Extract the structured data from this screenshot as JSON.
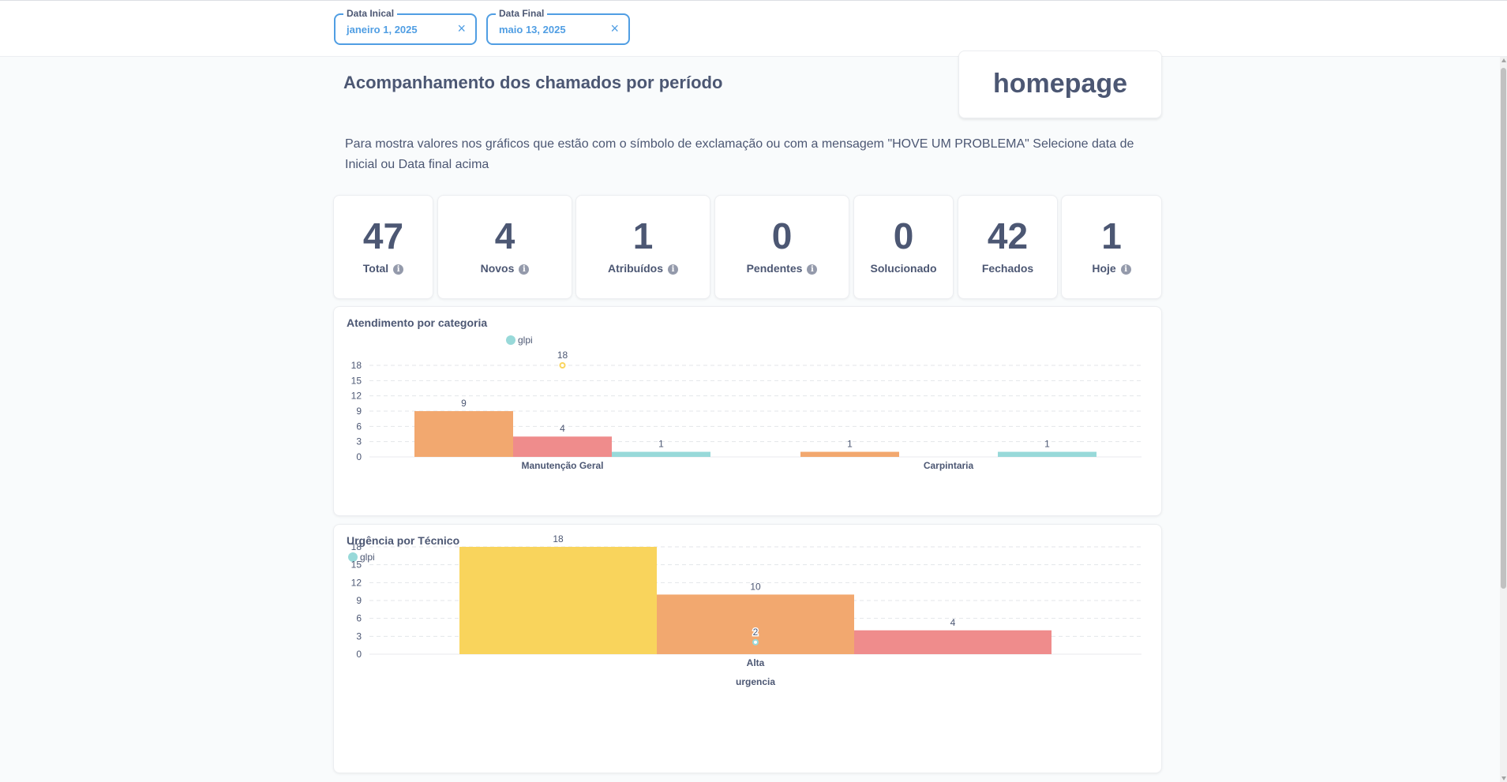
{
  "filters": {
    "start": {
      "label": "Data Inical",
      "value": "janeiro 1, 2025"
    },
    "end": {
      "label": "Data Final",
      "value": "maio 13, 2025"
    },
    "clear_icon": "×"
  },
  "header": {
    "title": "Acompanhamento dos chamados por período",
    "homepage": "homepage"
  },
  "description": "Para mostra valores nos gráficos que estão com o símbolo de exclamação ou com a mensagem \"HOVE UM PROBLEMA\" Selecione data de Inicial ou Data final acima",
  "stats": [
    {
      "value": "47",
      "label": "Total",
      "info": true
    },
    {
      "value": "4",
      "label": "Novos",
      "info": true
    },
    {
      "value": "1",
      "label": "Atribuídos",
      "info": true
    },
    {
      "value": "0",
      "label": "Pendentes",
      "info": true
    },
    {
      "value": "0",
      "label": "Solucionado",
      "info": false
    },
    {
      "value": "42",
      "label": "Fechados",
      "info": false
    },
    {
      "value": "1",
      "label": "Hoje",
      "info": true
    }
  ],
  "info_icon": "i",
  "colors": {
    "orange": "#f2a86f",
    "red": "#ef8c8c",
    "teal": "#98d9d9",
    "yellow": "#f9d45c",
    "grid": "#e3e6ea",
    "text": "#4c5773",
    "accent": "#509ee3"
  },
  "chart_data": [
    {
      "type": "bar",
      "title": "Atendimento por categoria",
      "legend": [
        "glpi"
      ],
      "categories": [
        "Manutenção Geral",
        "Carpintaria"
      ],
      "yticks": [
        0,
        3,
        6,
        9,
        12,
        15,
        18
      ],
      "ylim": [
        0,
        18
      ],
      "series": [
        {
          "color": "#f2a86f",
          "values": [
            9,
            1
          ]
        },
        {
          "color": "#ef8c8c",
          "values": [
            4,
            null
          ]
        },
        {
          "color": "#98d9d9",
          "values": [
            1,
            1
          ]
        }
      ],
      "points": [
        {
          "category": "Manutenção Geral",
          "value": 18,
          "color": "#f9d45c",
          "label": "18"
        }
      ]
    },
    {
      "type": "bar",
      "title": "Urgência por Técnico",
      "legend": [
        "glpi"
      ],
      "categories": [
        "Alta"
      ],
      "xlabel": "urgencia",
      "yticks": [
        0,
        3,
        6,
        9,
        12,
        15,
        18
      ],
      "ylim": [
        0,
        18
      ],
      "series": [
        {
          "color": "#f9d45c",
          "values": [
            18
          ]
        },
        {
          "color": "#f2a86f",
          "values": [
            10
          ]
        },
        {
          "color": "#ef8c8c",
          "values": [
            4
          ]
        }
      ],
      "points": [
        {
          "category": "Alta",
          "value": 2,
          "color": "#98d9d9",
          "label": "2"
        }
      ]
    }
  ]
}
